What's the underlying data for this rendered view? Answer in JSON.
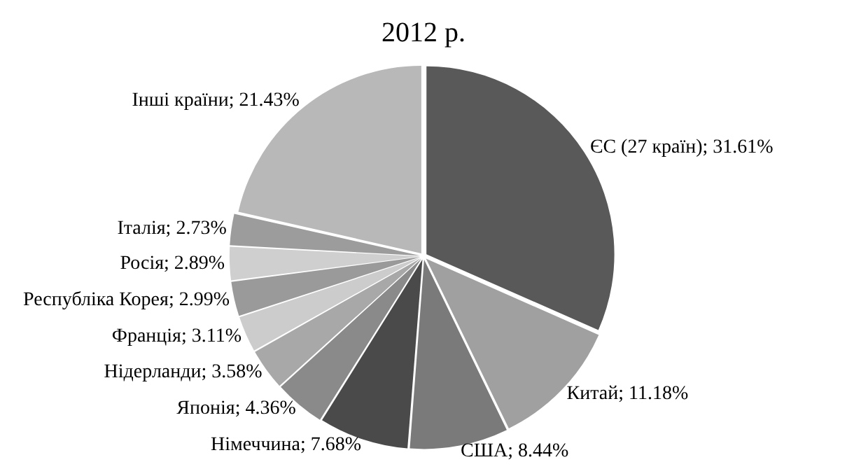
{
  "chart_data": {
    "type": "pie",
    "title": "2012 р.",
    "categories": [
      "ЄС (27 країн)",
      "Китай",
      "США",
      "Німеччина",
      "Японія",
      "Нідерланди",
      "Франція",
      "Республіка Корея",
      "Росія",
      "Італія",
      "Інші країни"
    ],
    "values": [
      31.61,
      11.18,
      8.44,
      7.68,
      4.36,
      3.58,
      3.11,
      2.99,
      2.89,
      2.73,
      21.43
    ],
    "value_labels": [
      "31.61%",
      "11.18%",
      "8.44%",
      "7.68%",
      "4.36%",
      "3.58%",
      "3.11%",
      "2.99%",
      "2.89%",
      "2.73%",
      "21.43%"
    ],
    "colors": [
      "#595959",
      "#a0a0a0",
      "#7a7a7a",
      "#4a4a4a",
      "#8a8a8a",
      "#a8a8a8",
      "#cccccc",
      "#9a9a9a",
      "#cfcfcf",
      "#9c9c9c",
      "#b8b8b8"
    ],
    "legend": false
  }
}
